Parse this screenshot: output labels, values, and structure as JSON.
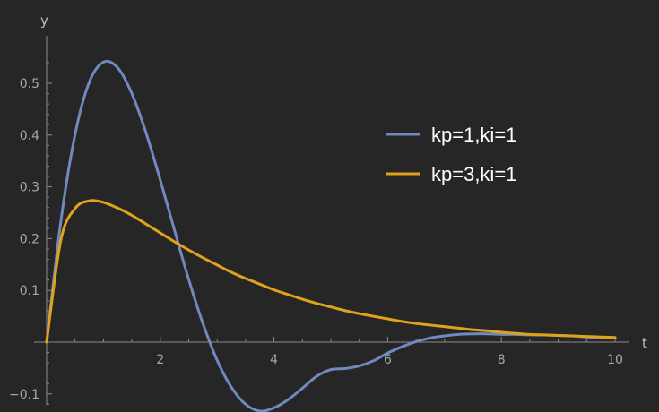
{
  "chart_data": {
    "type": "line",
    "xlabel": "t",
    "ylabel": "y",
    "xlim": [
      0,
      10
    ],
    "ylim": [
      -0.1,
      0.55
    ],
    "x_ticks": [
      2,
      4,
      6,
      8,
      10
    ],
    "y_ticks": [
      -0.1,
      0.1,
      0.2,
      0.3,
      0.4,
      0.5
    ],
    "x_tick_labels": [
      "2",
      "4",
      "6",
      "8",
      "10"
    ],
    "y_tick_labels": [
      "−0.1",
      "0.1",
      "0.2",
      "0.3",
      "0.4",
      "0.5"
    ],
    "grid": false,
    "legend_position": "right",
    "series": [
      {
        "name": "kp=1,ki=1",
        "color": "#7089be",
        "x": [
          0,
          0.25,
          0.5,
          0.75,
          1.0,
          1.25,
          1.5,
          1.75,
          2.0,
          2.25,
          2.5,
          2.75,
          3.0,
          3.25,
          3.5,
          3.75,
          4.0,
          4.25,
          4.5,
          4.75,
          5.0,
          5.25,
          5.5,
          5.75,
          6.0,
          6.25,
          6.5,
          6.75,
          7.0,
          7.25,
          7.5,
          7.75,
          8.0,
          8.25,
          8.5,
          8.75,
          9.0,
          9.25,
          9.5,
          9.75,
          10.0
        ],
        "y": [
          0,
          0.233,
          0.401,
          0.502,
          0.541,
          0.53,
          0.48,
          0.404,
          0.313,
          0.216,
          0.121,
          0.036,
          -0.035,
          -0.087,
          -0.12,
          -0.133,
          -0.127,
          -0.111,
          -0.089,
          -0.066,
          -0.053,
          -0.051,
          -0.046,
          -0.036,
          -0.021,
          -0.009,
          0.001,
          0.008,
          0.012,
          0.015,
          0.016,
          0.016,
          0.015,
          0.015,
          0.014,
          0.014,
          0.013,
          0.012,
          0.01,
          0.009,
          0.008
        ]
      },
      {
        "name": "kp=3,ki=1",
        "color": "#e0a21d",
        "x": [
          0,
          0.25,
          0.5,
          0.75,
          1.0,
          1.25,
          1.5,
          1.75,
          2.0,
          2.25,
          2.5,
          2.75,
          3.0,
          3.25,
          3.5,
          3.75,
          4.0,
          4.25,
          4.5,
          4.75,
          5.0,
          5.25,
          5.5,
          5.75,
          6.0,
          6.25,
          6.5,
          6.75,
          7.0,
          7.25,
          7.5,
          7.75,
          8.0,
          8.25,
          8.5,
          8.75,
          9.0,
          9.25,
          9.5,
          9.75,
          10.0
        ],
        "y": [
          0,
          0.197,
          0.258,
          0.273,
          0.27,
          0.259,
          0.245,
          0.228,
          0.211,
          0.194,
          0.178,
          0.163,
          0.149,
          0.135,
          0.123,
          0.112,
          0.101,
          0.092,
          0.083,
          0.075,
          0.068,
          0.061,
          0.055,
          0.05,
          0.045,
          0.04,
          0.036,
          0.033,
          0.03,
          0.027,
          0.024,
          0.022,
          0.019,
          0.017,
          0.015,
          0.014,
          0.013,
          0.012,
          0.011,
          0.01,
          0.009
        ]
      }
    ]
  }
}
